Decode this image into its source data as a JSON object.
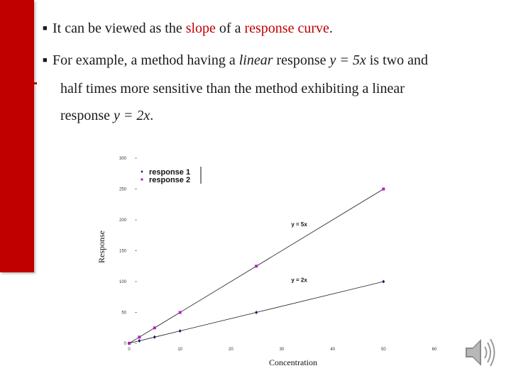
{
  "bullets": {
    "b1": {
      "pre": "It can be viewed as the ",
      "slope": "slope",
      "mid": " of a ",
      "curve": "response curve",
      "post": "."
    },
    "b2": {
      "l1_pre": "For example, a method having a ",
      "l1_linear": "linear",
      "l1_mid": " response ",
      "l1_eq": "y = 5x",
      "l1_post": " is two and",
      "l2": "half times more sensitive than the method exhibiting a linear",
      "l3_pre": "response ",
      "l3_eq": "y = 2x",
      "l3_post": "."
    }
  },
  "chart_data": {
    "type": "scatter",
    "xlabel": "Concentration",
    "ylabel": "Response",
    "xlim": [
      0,
      60
    ],
    "ylim": [
      0,
      300
    ],
    "x_ticks": [
      0,
      10,
      20,
      30,
      40,
      50,
      60
    ],
    "y_ticks": [
      0,
      50,
      100,
      150,
      200,
      250,
      300
    ],
    "legend_position": "top-left",
    "series": [
      {
        "name": "response 1",
        "color": "#1a1a6e",
        "marker": "diamond",
        "x": [
          0,
          2,
          5,
          10,
          25,
          50
        ],
        "y": [
          0,
          4,
          10,
          20,
          50,
          100
        ],
        "annotation": "y = 2x"
      },
      {
        "name": "response 2",
        "color": "#b020c0",
        "marker": "square",
        "x": [
          0,
          2,
          5,
          10,
          25,
          50
        ],
        "y": [
          0,
          10,
          25,
          50,
          125,
          250
        ],
        "annotation": "y = 5x"
      }
    ]
  },
  "icons": {
    "speaker": "speaker-icon"
  },
  "colors": {
    "accent": "#c00000"
  }
}
